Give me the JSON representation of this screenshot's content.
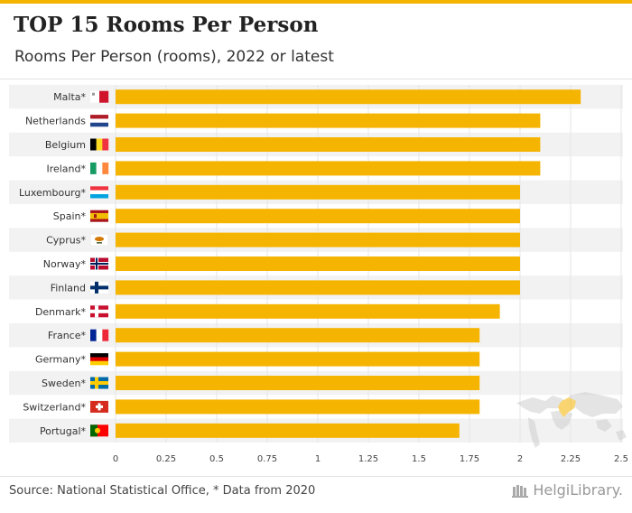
{
  "header": {
    "title": "TOP 15 Rooms Per Person",
    "subtitle": "Rooms Per Person (rooms), 2022 or latest"
  },
  "footer": {
    "source": "Source: National Statistical Office, * Data from 2020",
    "brand": "HelgiLibrary."
  },
  "colors": {
    "bar": "#f5b400",
    "row_band": "#f2f2f2",
    "accent": "#f5b400"
  },
  "chart_data": {
    "type": "bar",
    "orientation": "horizontal",
    "categories": [
      "Malta*",
      "Netherlands",
      "Belgium",
      "Ireland*",
      "Luxembourg*",
      "Spain*",
      "Cyprus*",
      "Norway*",
      "Finland",
      "Denmark*",
      "France*",
      "Germany*",
      "Sweden*",
      "Switzerland*",
      "Portugal*"
    ],
    "flags": [
      "malta-flag-icon",
      "netherlands-flag-icon",
      "belgium-flag-icon",
      "ireland-flag-icon",
      "luxembourg-flag-icon",
      "spain-flag-icon",
      "cyprus-flag-icon",
      "norway-flag-icon",
      "finland-flag-icon",
      "denmark-flag-icon",
      "france-flag-icon",
      "germany-flag-icon",
      "sweden-flag-icon",
      "switzerland-flag-icon",
      "portugal-flag-icon"
    ],
    "values": [
      2.3,
      2.1,
      2.1,
      2.1,
      2.0,
      2.0,
      2.0,
      2.0,
      2.0,
      1.9,
      1.8,
      1.8,
      1.8,
      1.8,
      1.7
    ],
    "xlim": [
      0,
      2.5
    ],
    "xticks": [
      "0",
      "0.25",
      "0.5",
      "0.75",
      "1",
      "1.25",
      "1.5",
      "1.75",
      "2",
      "2.25",
      "2.5"
    ],
    "grid": true
  }
}
